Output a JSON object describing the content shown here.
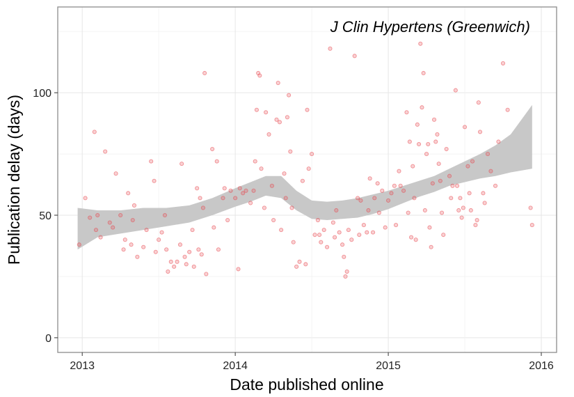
{
  "chart_data": {
    "type": "scatter",
    "title": "",
    "annotation": "J Clin Hypertens (Greenwich)",
    "xlabel": "Date published online",
    "ylabel": "Publication delay (days)",
    "xlim": [
      2012.84,
      2016.1
    ],
    "ylim": [
      -6,
      135
    ],
    "x_ticks": [
      2013,
      2014,
      2015,
      2016
    ],
    "x_tick_labels": [
      "2013",
      "2014",
      "2015",
      "2016"
    ],
    "y_ticks": [
      0,
      50,
      100
    ],
    "y_tick_labels": [
      "0",
      "50",
      "100"
    ],
    "grid": true,
    "legend": "none",
    "point_color": "#e8474f",
    "smooth_color": "#c8c8c8",
    "series": [
      {
        "kind": "points",
        "points": [
          [
            2012.98,
            38
          ],
          [
            2013.02,
            57
          ],
          [
            2013.05,
            49
          ],
          [
            2013.08,
            84
          ],
          [
            2013.09,
            44
          ],
          [
            2013.1,
            50
          ],
          [
            2013.12,
            41
          ],
          [
            2013.15,
            76
          ],
          [
            2013.18,
            47
          ],
          [
            2013.2,
            45
          ],
          [
            2013.22,
            67
          ],
          [
            2013.25,
            50
          ],
          [
            2013.27,
            36
          ],
          [
            2013.28,
            40
          ],
          [
            2013.3,
            59
          ],
          [
            2013.32,
            38
          ],
          [
            2013.33,
            48
          ],
          [
            2013.34,
            54
          ],
          [
            2013.36,
            33
          ],
          [
            2013.4,
            37
          ],
          [
            2013.42,
            44
          ],
          [
            2013.45,
            72
          ],
          [
            2013.47,
            64
          ],
          [
            2013.48,
            35
          ],
          [
            2013.5,
            40
          ],
          [
            2013.52,
            43
          ],
          [
            2013.54,
            50
          ],
          [
            2013.55,
            36
          ],
          [
            2013.56,
            27
          ],
          [
            2013.58,
            31
          ],
          [
            2013.6,
            29
          ],
          [
            2013.62,
            31
          ],
          [
            2013.64,
            38
          ],
          [
            2013.65,
            71
          ],
          [
            2013.67,
            33
          ],
          [
            2013.68,
            30
          ],
          [
            2013.7,
            35
          ],
          [
            2013.72,
            44
          ],
          [
            2013.73,
            29
          ],
          [
            2013.75,
            61
          ],
          [
            2013.76,
            36
          ],
          [
            2013.77,
            57
          ],
          [
            2013.78,
            34
          ],
          [
            2013.79,
            53
          ],
          [
            2013.8,
            108
          ],
          [
            2013.81,
            26
          ],
          [
            2013.85,
            77
          ],
          [
            2013.86,
            45
          ],
          [
            2013.88,
            72
          ],
          [
            2013.89,
            36
          ],
          [
            2013.92,
            57
          ],
          [
            2013.93,
            61
          ],
          [
            2013.95,
            48
          ],
          [
            2013.97,
            60
          ],
          [
            2014.0,
            57
          ],
          [
            2014.02,
            28
          ],
          [
            2014.03,
            61
          ],
          [
            2014.05,
            59
          ],
          [
            2014.07,
            60
          ],
          [
            2014.1,
            55
          ],
          [
            2014.12,
            60
          ],
          [
            2014.13,
            72
          ],
          [
            2014.14,
            93
          ],
          [
            2014.15,
            108
          ],
          [
            2014.16,
            107
          ],
          [
            2014.17,
            69
          ],
          [
            2014.19,
            53
          ],
          [
            2014.2,
            92
          ],
          [
            2014.22,
            83
          ],
          [
            2014.24,
            62
          ],
          [
            2014.25,
            48
          ],
          [
            2014.27,
            89
          ],
          [
            2014.28,
            104
          ],
          [
            2014.29,
            88
          ],
          [
            2014.3,
            44
          ],
          [
            2014.32,
            67
          ],
          [
            2014.33,
            57
          ],
          [
            2014.34,
            90
          ],
          [
            2014.35,
            99
          ],
          [
            2014.36,
            76
          ],
          [
            2014.37,
            53
          ],
          [
            2014.38,
            39
          ],
          [
            2014.4,
            29
          ],
          [
            2014.42,
            31
          ],
          [
            2014.44,
            64
          ],
          [
            2014.46,
            30
          ],
          [
            2014.47,
            93
          ],
          [
            2014.48,
            69
          ],
          [
            2014.5,
            75
          ],
          [
            2014.52,
            42
          ],
          [
            2014.54,
            48
          ],
          [
            2014.55,
            42
          ],
          [
            2014.56,
            39
          ],
          [
            2014.58,
            44
          ],
          [
            2014.6,
            37
          ],
          [
            2014.62,
            118
          ],
          [
            2014.64,
            47
          ],
          [
            2014.65,
            41
          ],
          [
            2014.66,
            52
          ],
          [
            2014.68,
            43
          ],
          [
            2014.7,
            38
          ],
          [
            2014.71,
            33
          ],
          [
            2014.72,
            25
          ],
          [
            2014.73,
            27
          ],
          [
            2014.74,
            44
          ],
          [
            2014.76,
            40
          ],
          [
            2014.78,
            115
          ],
          [
            2014.8,
            57
          ],
          [
            2014.81,
            42
          ],
          [
            2014.82,
            56
          ],
          [
            2014.84,
            46
          ],
          [
            2014.86,
            43
          ],
          [
            2014.87,
            52
          ],
          [
            2014.88,
            65
          ],
          [
            2014.9,
            43
          ],
          [
            2014.91,
            57
          ],
          [
            2014.93,
            63
          ],
          [
            2014.94,
            51
          ],
          [
            2014.96,
            60
          ],
          [
            2014.98,
            45
          ],
          [
            2015.0,
            56
          ],
          [
            2015.02,
            59
          ],
          [
            2015.04,
            62
          ],
          [
            2015.05,
            46
          ],
          [
            2015.07,
            68
          ],
          [
            2015.08,
            62
          ],
          [
            2015.1,
            60
          ],
          [
            2015.12,
            92
          ],
          [
            2015.13,
            51
          ],
          [
            2015.14,
            80
          ],
          [
            2015.15,
            41
          ],
          [
            2015.16,
            70
          ],
          [
            2015.17,
            57
          ],
          [
            2015.18,
            40
          ],
          [
            2015.19,
            87
          ],
          [
            2015.2,
            79
          ],
          [
            2015.21,
            120
          ],
          [
            2015.22,
            94
          ],
          [
            2015.23,
            108
          ],
          [
            2015.24,
            52
          ],
          [
            2015.25,
            75
          ],
          [
            2015.26,
            79
          ],
          [
            2015.27,
            45
          ],
          [
            2015.28,
            37
          ],
          [
            2015.29,
            63
          ],
          [
            2015.3,
            89
          ],
          [
            2015.31,
            80
          ],
          [
            2015.32,
            83
          ],
          [
            2015.33,
            71
          ],
          [
            2015.34,
            64
          ],
          [
            2015.35,
            51
          ],
          [
            2015.36,
            42
          ],
          [
            2015.38,
            77
          ],
          [
            2015.4,
            66
          ],
          [
            2015.41,
            57
          ],
          [
            2015.42,
            62
          ],
          [
            2015.44,
            101
          ],
          [
            2015.45,
            62
          ],
          [
            2015.46,
            52
          ],
          [
            2015.47,
            57
          ],
          [
            2015.48,
            49
          ],
          [
            2015.49,
            53
          ],
          [
            2015.5,
            86
          ],
          [
            2015.52,
            70
          ],
          [
            2015.53,
            59
          ],
          [
            2015.54,
            52
          ],
          [
            2015.55,
            72
          ],
          [
            2015.57,
            46
          ],
          [
            2015.58,
            48
          ],
          [
            2015.59,
            96
          ],
          [
            2015.6,
            84
          ],
          [
            2015.62,
            59
          ],
          [
            2015.63,
            55
          ],
          [
            2015.65,
            75
          ],
          [
            2015.67,
            68
          ],
          [
            2015.7,
            62
          ],
          [
            2015.72,
            80
          ],
          [
            2015.75,
            112
          ],
          [
            2015.78,
            93
          ],
          [
            2015.93,
            53
          ],
          [
            2015.94,
            46
          ]
        ]
      },
      {
        "kind": "smooth-band",
        "x": [
          2012.97,
          2013.1,
          2013.25,
          2013.4,
          2013.55,
          2013.7,
          2013.85,
          2014.0,
          2014.1,
          2014.2,
          2014.3,
          2014.4,
          2014.5,
          2014.6,
          2014.7,
          2014.8,
          2014.9,
          2015.0,
          2015.1,
          2015.2,
          2015.3,
          2015.4,
          2015.5,
          2015.6,
          2015.7,
          2015.8,
          2015.94
        ],
        "upper": [
          53,
          52,
          52,
          53,
          53,
          54,
          57,
          61,
          63.5,
          66,
          66,
          60,
          56,
          55.5,
          56,
          57,
          58.5,
          60,
          62,
          64,
          66,
          69,
          72,
          75,
          78.5,
          83,
          95
        ],
        "lower": [
          36,
          41,
          42.5,
          44,
          45.5,
          47,
          50,
          53.5,
          55.5,
          58,
          57,
          52,
          48.5,
          48,
          48.5,
          49,
          50.5,
          52.5,
          55,
          57.5,
          59.5,
          62,
          63.5,
          65,
          66,
          67.5,
          69
        ]
      }
    ]
  }
}
